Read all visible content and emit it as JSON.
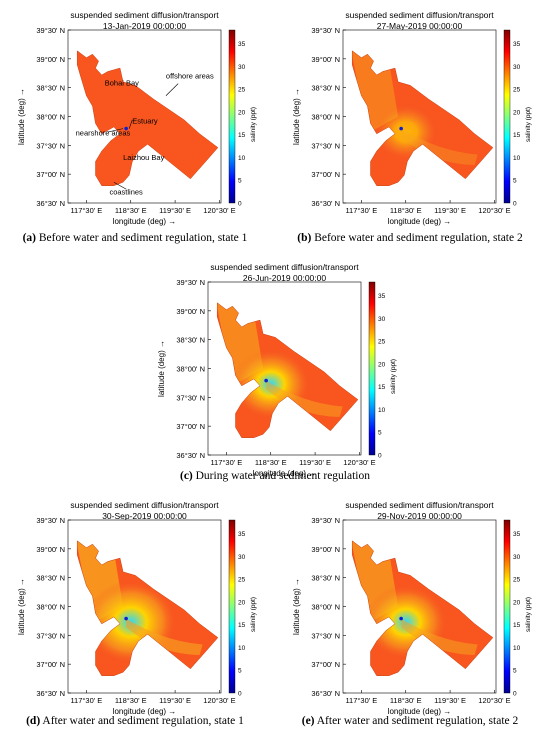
{
  "figure": {
    "colorbar": {
      "label": "salinity (ppt)",
      "ticks": [
        "0",
        "5",
        "10",
        "15",
        "20",
        "25",
        "30",
        "35"
      ],
      "range": [
        0,
        38
      ],
      "colors": [
        "#00008f",
        "#0000ff",
        "#0080ff",
        "#00ffff",
        "#80ff80",
        "#ffff00",
        "#ff8000",
        "#ff0000",
        "#800000"
      ]
    },
    "map_colors": {
      "base": "#f8551f",
      "plume": "#f7a21e",
      "plume_mid": "#ffd400",
      "fresh": "#2ad8ff",
      "river": "#1020d0"
    }
  },
  "chart_data": [
    {
      "type": "heatmap",
      "title": "suspended sediment diffusion/transport",
      "subtitle": "13-Jan-2019 00:00:00",
      "xlabel": "longitude (deg) →",
      "ylabel": "latitude (deg) →",
      "x_ticks": [
        "117°30' E",
        "118°30' E",
        "119°30' E",
        "120°30' E"
      ],
      "y_ticks": [
        "39°30' N",
        "39°00' N",
        "38°30' N",
        "38°00' N",
        "37°30' N",
        "37°00' N",
        "36°30' N"
      ],
      "xlim": [
        "117°00' E",
        "120°30' E"
      ],
      "ylim": [
        "36°30' N",
        "39°30' N"
      ],
      "annotations": [
        "Bohai Bay",
        "offshore areas",
        "Estuary",
        "nearshore areas",
        "Laizhou Bay",
        "coastlines"
      ],
      "plume_level": 0.0,
      "caption_label": "(a)",
      "caption_text": " Before water and sediment regulation, state 1"
    },
    {
      "type": "heatmap",
      "title": "suspended sediment diffusion/transport",
      "subtitle": "27-May-2019 00:00:00",
      "xlabel": "longitude (deg) →",
      "ylabel": "latitude (deg) →",
      "x_ticks": [
        "117°30' E",
        "118°30' E",
        "119°30' E",
        "120°30' E"
      ],
      "y_ticks": [
        "39°30' N",
        "39°00' N",
        "38°30' N",
        "38°00' N",
        "37°30' N",
        "37°00' N",
        "36°30' N"
      ],
      "xlim": [
        "117°00' E",
        "120°30' E"
      ],
      "ylim": [
        "36°30' N",
        "39°30' N"
      ],
      "annotations": [],
      "plume_level": 0.35,
      "caption_label": "(b)",
      "caption_text": " Before water and sediment regulation, state 2"
    },
    {
      "type": "heatmap",
      "title": "suspended sediment diffusion/transport",
      "subtitle": "26-Jun-2019 00:00:00",
      "xlabel": "longitude (deg) →",
      "ylabel": "latitude (deg) →",
      "x_ticks": [
        "117°30' E",
        "118°30' E",
        "119°30' E",
        "120°30' E"
      ],
      "y_ticks": [
        "39°30' N",
        "39°00' N",
        "38°30' N",
        "38°00' N",
        "37°30' N",
        "37°00' N",
        "36°30' N"
      ],
      "xlim": [
        "117°00' E",
        "120°30' E"
      ],
      "ylim": [
        "36°30' N",
        "39°30' N"
      ],
      "annotations": [],
      "plume_level": 0.7,
      "caption_label": "(c)",
      "caption_text": " During water and sediment regulation"
    },
    {
      "type": "heatmap",
      "title": "suspended sediment diffusion/transport",
      "subtitle": "30-Sep-2019 00:00:00",
      "xlabel": "longitude (deg) →",
      "ylabel": "latitude (deg) →",
      "x_ticks": [
        "117°30' E",
        "118°30' E",
        "119°30' E",
        "120°30' E"
      ],
      "y_ticks": [
        "39°30' N",
        "39°00' N",
        "38°30' N",
        "38°00' N",
        "37°30' N",
        "37°00' N",
        "36°30' N"
      ],
      "xlim": [
        "117°00' E",
        "120°30' E"
      ],
      "ylim": [
        "36°30' N",
        "39°30' N"
      ],
      "annotations": [],
      "plume_level": 1.0,
      "caption_label": "(d)",
      "caption_text": " After water and sediment regulation, state 1"
    },
    {
      "type": "heatmap",
      "title": "suspended sediment diffusion/transport",
      "subtitle": "29-Nov-2019 00:00:00",
      "xlabel": "longitude (deg) →",
      "ylabel": "latitude (deg) →",
      "x_ticks": [
        "117°30' E",
        "118°30' E",
        "119°30' E",
        "120°30' E"
      ],
      "y_ticks": [
        "39°30' N",
        "39°00' N",
        "38°30' N",
        "38°00' N",
        "37°30' N",
        "37°00' N",
        "36°30' N"
      ],
      "xlim": [
        "117°00' E",
        "120°30' E"
      ],
      "ylim": [
        "36°30' N",
        "39°30' N"
      ],
      "annotations": [],
      "plume_level": 0.8,
      "caption_label": "(e)",
      "caption_text": " After water and sediment regulation, state 2"
    }
  ]
}
